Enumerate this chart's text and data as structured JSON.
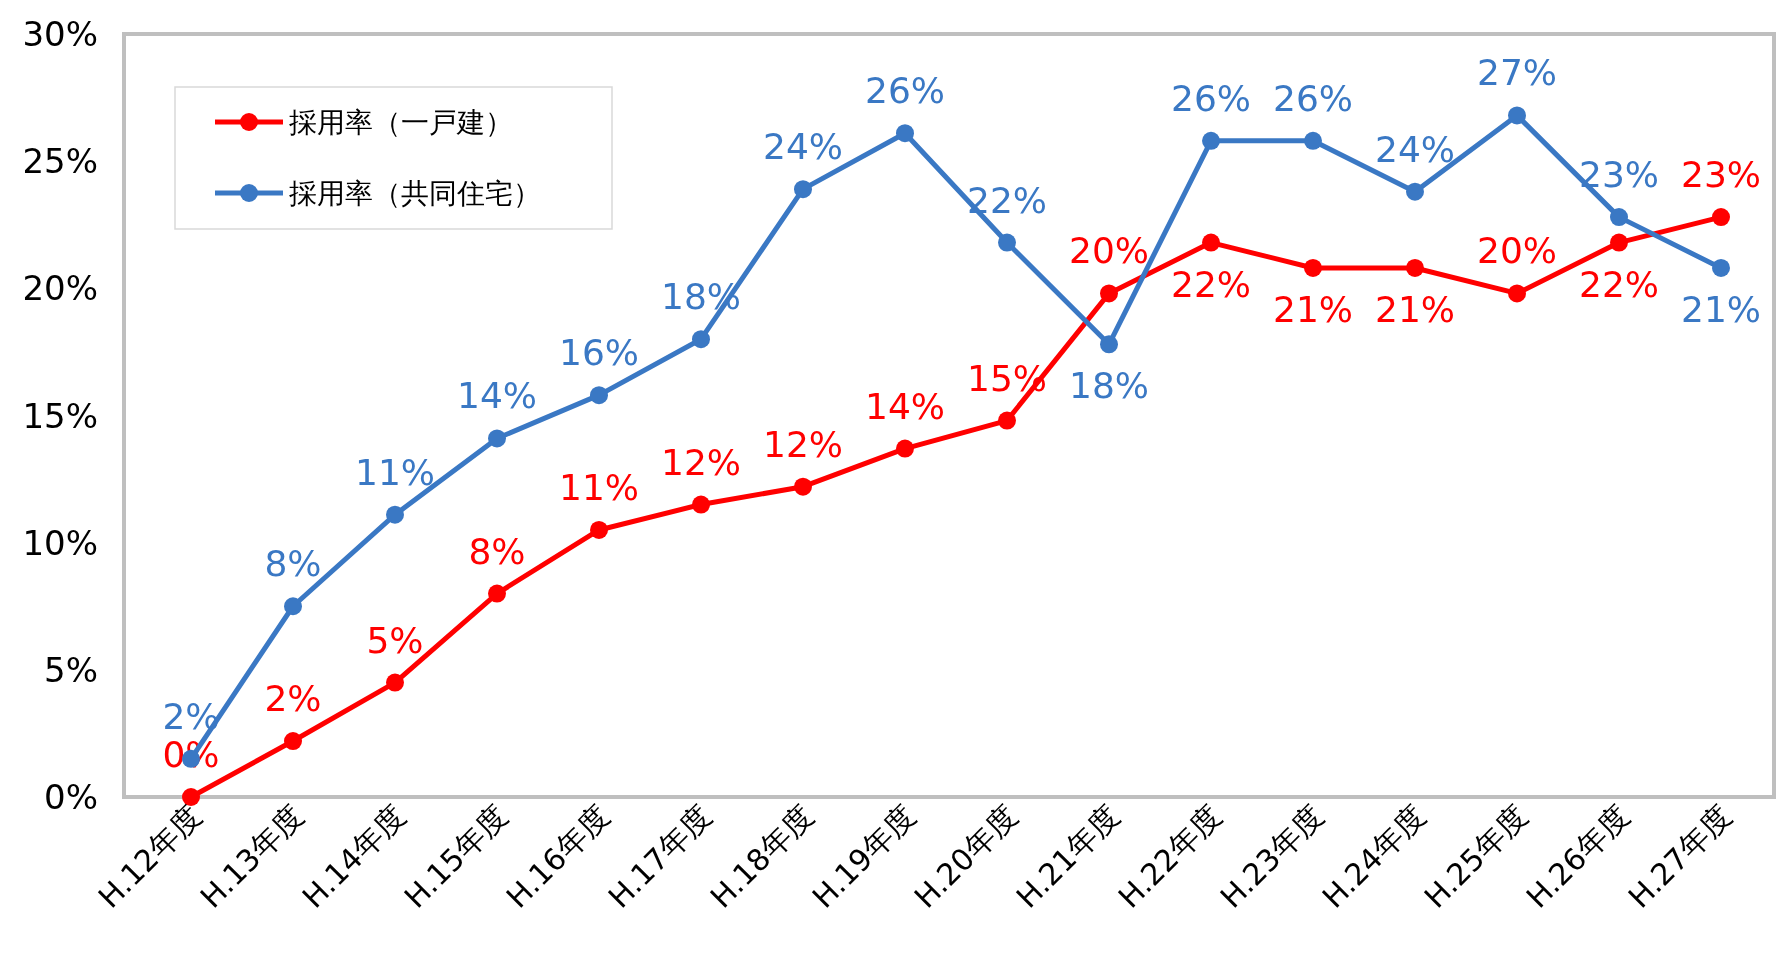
{
  "chart_data": {
    "type": "line",
    "categories": [
      "H.12年度",
      "H.13年度",
      "H.14年度",
      "H.15年度",
      "H.16年度",
      "H.17年度",
      "H.18年度",
      "H.19年度",
      "H.20年度",
      "H.21年度",
      "H.22年度",
      "H.23年度",
      "H.24年度",
      "H.25年度",
      "H.26年度",
      "H.27年度"
    ],
    "series": [
      {
        "name": "採用率（一戸建）",
        "color": "#ff0000",
        "values": [
          0.0,
          2.2,
          4.5,
          8.0,
          10.5,
          11.5,
          12.2,
          13.7,
          14.8,
          19.8,
          21.8,
          20.8,
          20.8,
          19.8,
          21.8,
          22.8
        ],
        "value_labels": [
          "0%",
          "2%",
          "5%",
          "8%",
          "11%",
          "12%",
          "12%",
          "14%",
          "15%",
          "20%",
          "22%",
          "21%",
          "21%",
          "20%",
          "22%",
          "23%"
        ]
      },
      {
        "name": "採用率（共同住宅）",
        "color": "#3a78c4",
        "values": [
          1.5,
          7.5,
          11.1,
          14.1,
          15.8,
          18.0,
          23.9,
          26.1,
          21.8,
          17.8,
          25.8,
          25.8,
          23.8,
          26.8,
          22.8,
          20.8
        ],
        "value_labels": [
          "2%",
          "8%",
          "11%",
          "14%",
          "16%",
          "18%",
          "24%",
          "26%",
          "22%",
          "18%",
          "26%",
          "26%",
          "24%",
          "27%",
          "23%",
          "21%"
        ]
      }
    ],
    "ylim": [
      0,
      30
    ],
    "yticks": [
      {
        "value": 0,
        "label": "0%"
      },
      {
        "value": 5,
        "label": "5%"
      },
      {
        "value": 10,
        "label": "10%"
      },
      {
        "value": 15,
        "label": "15%"
      },
      {
        "value": 20,
        "label": "20%"
      },
      {
        "value": 25,
        "label": "25%"
      },
      {
        "value": 30,
        "label": "30%"
      }
    ],
    "legend": "top left",
    "marker": "circle"
  }
}
